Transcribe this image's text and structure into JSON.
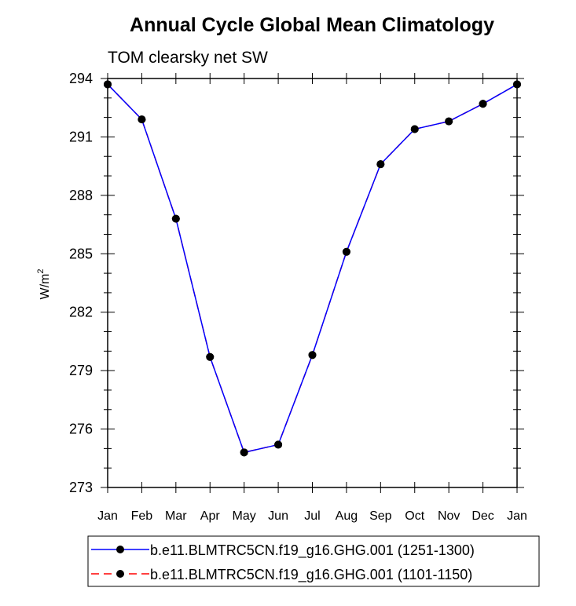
{
  "chart_data": {
    "type": "line",
    "title": "Annual Cycle Global Mean Climatology",
    "subtitle": "TOM clearsky net SW",
    "xlabel": "",
    "ylabel": "W/m",
    "ylabel_superscript": "2",
    "categories": [
      "Jan",
      "Feb",
      "Mar",
      "Apr",
      "May",
      "Jun",
      "Jul",
      "Aug",
      "Sep",
      "Oct",
      "Nov",
      "Dec",
      "Jan"
    ],
    "ylim": [
      273,
      294
    ],
    "yticks": [
      "294",
      "291",
      "288",
      "285",
      "282",
      "279",
      "276",
      "273"
    ],
    "ytick_values": [
      294,
      291,
      288,
      285,
      282,
      279,
      276,
      273
    ],
    "series": [
      {
        "name": "b.e11.BLMTRC5CN.f19_g16.GHG.001 (1251-1300)",
        "color": "#0000ff",
        "dash": "solid",
        "values": [
          293.7,
          291.9,
          286.8,
          279.7,
          274.8,
          275.2,
          279.8,
          285.1,
          289.6,
          291.4,
          291.8,
          292.7,
          293.7
        ]
      },
      {
        "name": "b.e11.BLMTRC5CN.f19_g16.GHG.001 (1101-1150)",
        "color": "#ff0000",
        "dash": "dashed",
        "values": [
          293.7,
          291.9,
          286.8,
          279.7,
          274.8,
          275.2,
          279.8,
          285.1,
          289.6,
          291.4,
          291.8,
          292.7,
          293.7
        ]
      }
    ],
    "legend_position": "bottom"
  }
}
